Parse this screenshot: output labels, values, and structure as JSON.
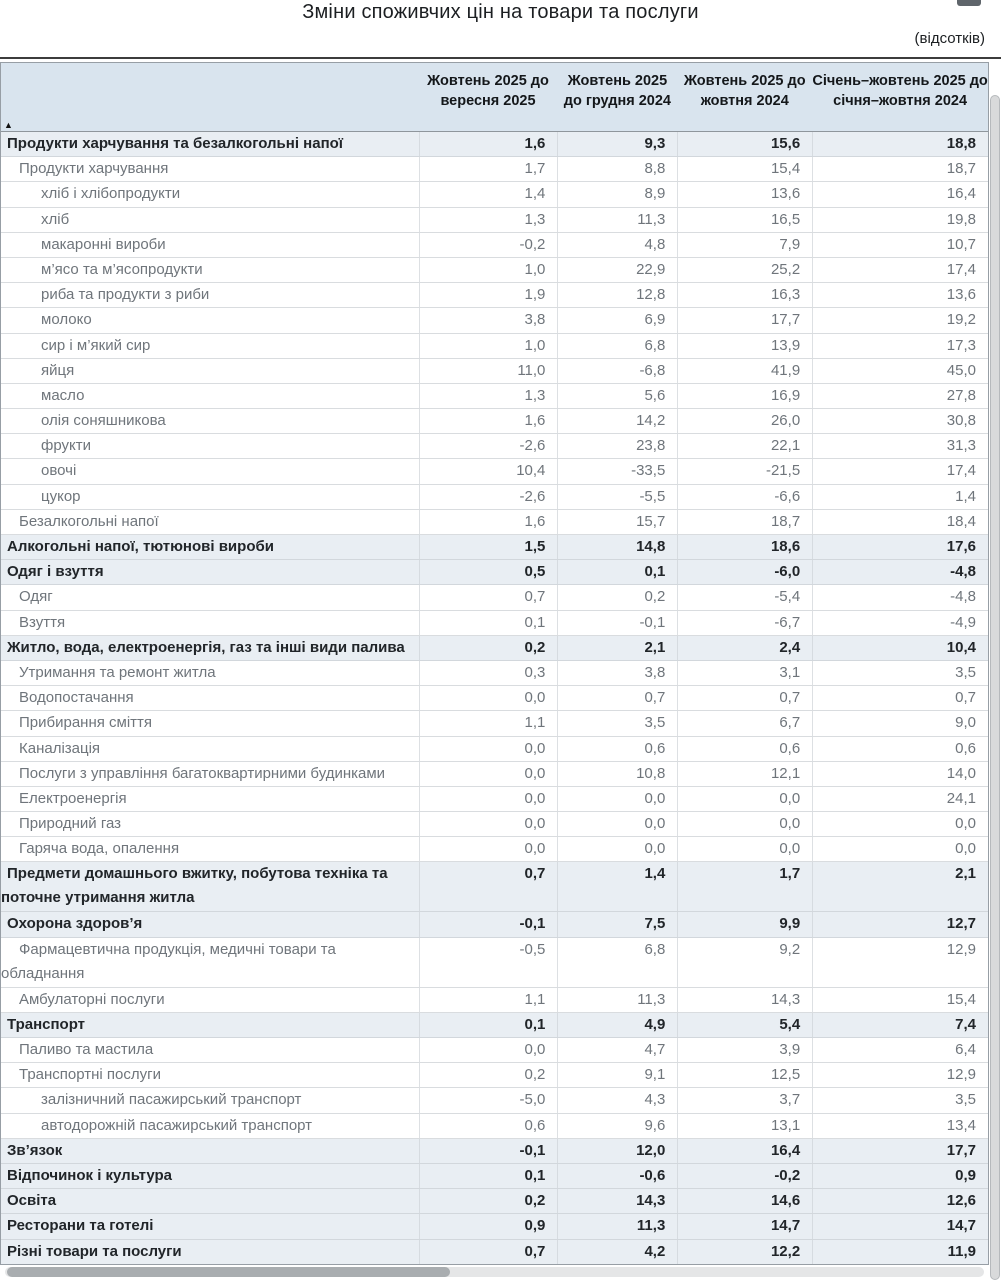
{
  "page": {
    "title": "Зміни споживчих цін на товари та послуги",
    "unit_note": "(відсотків)"
  },
  "table": {
    "sort_indicator": "▲",
    "columns": [
      "Жовтень 2025 до вересня 2025",
      "Жовтень 2025 до грудня 2024",
      "Жовтень 2025 до жовтня 2024",
      "Січень–жовтень 2025 до січня–жовтня 2024"
    ],
    "rows": [
      {
        "label": "Продукти харчування та безалкогольні напої",
        "level": 0,
        "section": true,
        "values": [
          "1,6",
          "9,3",
          "15,6",
          "18,8"
        ]
      },
      {
        "label": "Продукти харчування",
        "level": 1,
        "section": false,
        "values": [
          "1,7",
          "8,8",
          "15,4",
          "18,7"
        ]
      },
      {
        "label": "хліб і хлібопродукти",
        "level": 2,
        "section": false,
        "values": [
          "1,4",
          "8,9",
          "13,6",
          "16,4"
        ]
      },
      {
        "label": "хліб",
        "level": 2,
        "section": false,
        "values": [
          "1,3",
          "11,3",
          "16,5",
          "19,8"
        ]
      },
      {
        "label": "макаронні вироби",
        "level": 2,
        "section": false,
        "values": [
          "-0,2",
          "4,8",
          "7,9",
          "10,7"
        ]
      },
      {
        "label": "м’ясо та м’ясопродукти",
        "level": 2,
        "section": false,
        "values": [
          "1,0",
          "22,9",
          "25,2",
          "17,4"
        ]
      },
      {
        "label": "риба та продукти з риби",
        "level": 2,
        "section": false,
        "values": [
          "1,9",
          "12,8",
          "16,3",
          "13,6"
        ]
      },
      {
        "label": "молоко",
        "level": 2,
        "section": false,
        "values": [
          "3,8",
          "6,9",
          "17,7",
          "19,2"
        ]
      },
      {
        "label": "сир і м’який сир",
        "level": 2,
        "section": false,
        "values": [
          "1,0",
          "6,8",
          "13,9",
          "17,3"
        ]
      },
      {
        "label": "яйця",
        "level": 2,
        "section": false,
        "values": [
          "11,0",
          "-6,8",
          "41,9",
          "45,0"
        ]
      },
      {
        "label": "масло",
        "level": 2,
        "section": false,
        "values": [
          "1,3",
          "5,6",
          "16,9",
          "27,8"
        ]
      },
      {
        "label": "олія соняшникова",
        "level": 2,
        "section": false,
        "values": [
          "1,6",
          "14,2",
          "26,0",
          "30,8"
        ]
      },
      {
        "label": "фрукти",
        "level": 2,
        "section": false,
        "values": [
          "-2,6",
          "23,8",
          "22,1",
          "31,3"
        ]
      },
      {
        "label": "овочі",
        "level": 2,
        "section": false,
        "values": [
          "10,4",
          "-33,5",
          "-21,5",
          "17,4"
        ]
      },
      {
        "label": "цукор",
        "level": 2,
        "section": false,
        "values": [
          "-2,6",
          "-5,5",
          "-6,6",
          "1,4"
        ]
      },
      {
        "label": "Безалкогольні напої",
        "level": 1,
        "section": false,
        "values": [
          "1,6",
          "15,7",
          "18,7",
          "18,4"
        ]
      },
      {
        "label": "Алкогольні напої, тютюнові вироби",
        "level": 0,
        "section": true,
        "values": [
          "1,5",
          "14,8",
          "18,6",
          "17,6"
        ]
      },
      {
        "label": "Одяг і взуття",
        "level": 0,
        "section": true,
        "values": [
          "0,5",
          "0,1",
          "-6,0",
          "-4,8"
        ]
      },
      {
        "label": "Одяг",
        "level": 1,
        "section": false,
        "values": [
          "0,7",
          "0,2",
          "-5,4",
          "-4,8"
        ]
      },
      {
        "label": "Взуття",
        "level": 1,
        "section": false,
        "values": [
          "0,1",
          "-0,1",
          "-6,7",
          "-4,9"
        ]
      },
      {
        "label": "Житло, вода, електроенергія, газ та інші види палива",
        "level": 0,
        "section": true,
        "values": [
          "0,2",
          "2,1",
          "2,4",
          "10,4"
        ]
      },
      {
        "label": "Утримання та ремонт житла",
        "level": 1,
        "section": false,
        "values": [
          "0,3",
          "3,8",
          "3,1",
          "3,5"
        ]
      },
      {
        "label": "Водопостачання",
        "level": 1,
        "section": false,
        "values": [
          "0,0",
          "0,7",
          "0,7",
          "0,7"
        ]
      },
      {
        "label": "Прибирання сміття",
        "level": 1,
        "section": false,
        "values": [
          "1,1",
          "3,5",
          "6,7",
          "9,0"
        ]
      },
      {
        "label": "Каналізація",
        "level": 1,
        "section": false,
        "values": [
          "0,0",
          "0,6",
          "0,6",
          "0,6"
        ]
      },
      {
        "label": "Послуги з управління багатоквартирними будинками",
        "level": 1,
        "section": false,
        "values": [
          "0,0",
          "10,8",
          "12,1",
          "14,0"
        ]
      },
      {
        "label": "Електроенергія",
        "level": 1,
        "section": false,
        "values": [
          "0,0",
          "0,0",
          "0,0",
          "24,1"
        ]
      },
      {
        "label": "Природний газ",
        "level": 1,
        "section": false,
        "values": [
          "0,0",
          "0,0",
          "0,0",
          "0,0"
        ]
      },
      {
        "label": "Гаряча вода, опалення",
        "level": 1,
        "section": false,
        "values": [
          "0,0",
          "0,0",
          "0,0",
          "0,0"
        ]
      },
      {
        "label": "Предмети домашнього вжитку, побутова техніка та\nпоточне утримання житла",
        "level": 0,
        "section": true,
        "values": [
          "0,7",
          "1,4",
          "1,7",
          "2,1"
        ]
      },
      {
        "label": "Охорона здоров’я",
        "level": 0,
        "section": true,
        "values": [
          "-0,1",
          "7,5",
          "9,9",
          "12,7"
        ]
      },
      {
        "label": "Фармацевтична продукція, медичні товари та\nобладнання",
        "level": 1,
        "section": false,
        "values": [
          "-0,5",
          "6,8",
          "9,2",
          "12,9"
        ]
      },
      {
        "label": "Амбулаторні послуги",
        "level": 1,
        "section": false,
        "values": [
          "1,1",
          "11,3",
          "14,3",
          "15,4"
        ]
      },
      {
        "label": "Транспорт",
        "level": 0,
        "section": true,
        "values": [
          "0,1",
          "4,9",
          "5,4",
          "7,4"
        ]
      },
      {
        "label": "Паливо та мастила",
        "level": 1,
        "section": false,
        "values": [
          "0,0",
          "4,7",
          "3,9",
          "6,4"
        ]
      },
      {
        "label": "Транспортні послуги",
        "level": 1,
        "section": false,
        "values": [
          "0,2",
          "9,1",
          "12,5",
          "12,9"
        ]
      },
      {
        "label": "залізничний пасажирський транспорт",
        "level": 2,
        "section": false,
        "values": [
          "-5,0",
          "4,3",
          "3,7",
          "3,5"
        ]
      },
      {
        "label": "автодорожній пасажирський транспорт",
        "level": 2,
        "section": false,
        "values": [
          "0,6",
          "9,6",
          "13,1",
          "13,4"
        ]
      },
      {
        "label": "Зв’язок",
        "level": 0,
        "section": true,
        "values": [
          "-0,1",
          "12,0",
          "16,4",
          "17,7"
        ]
      },
      {
        "label": "Відпочинок і культура",
        "level": 0,
        "section": true,
        "values": [
          "0,1",
          "-0,6",
          "-0,2",
          "0,9"
        ]
      },
      {
        "label": "Освіта",
        "level": 0,
        "section": true,
        "values": [
          "0,2",
          "14,3",
          "14,6",
          "12,6"
        ]
      },
      {
        "label": "Ресторани та готелі",
        "level": 0,
        "section": true,
        "values": [
          "0,9",
          "11,3",
          "14,7",
          "14,7"
        ]
      },
      {
        "label": "Різні товари та послуги",
        "level": 0,
        "section": true,
        "values": [
          "0,7",
          "4,2",
          "12,2",
          "11,9"
        ]
      }
    ]
  },
  "colors": {
    "header_bg": "#d9e4ee",
    "section_row_bg": "#e9eef3",
    "row_border": "#d9dcdf",
    "table_border": "#979ea5",
    "top_rule": "#3c3c3c",
    "text_dark": "#212529",
    "text_gray": "#6f757b"
  }
}
